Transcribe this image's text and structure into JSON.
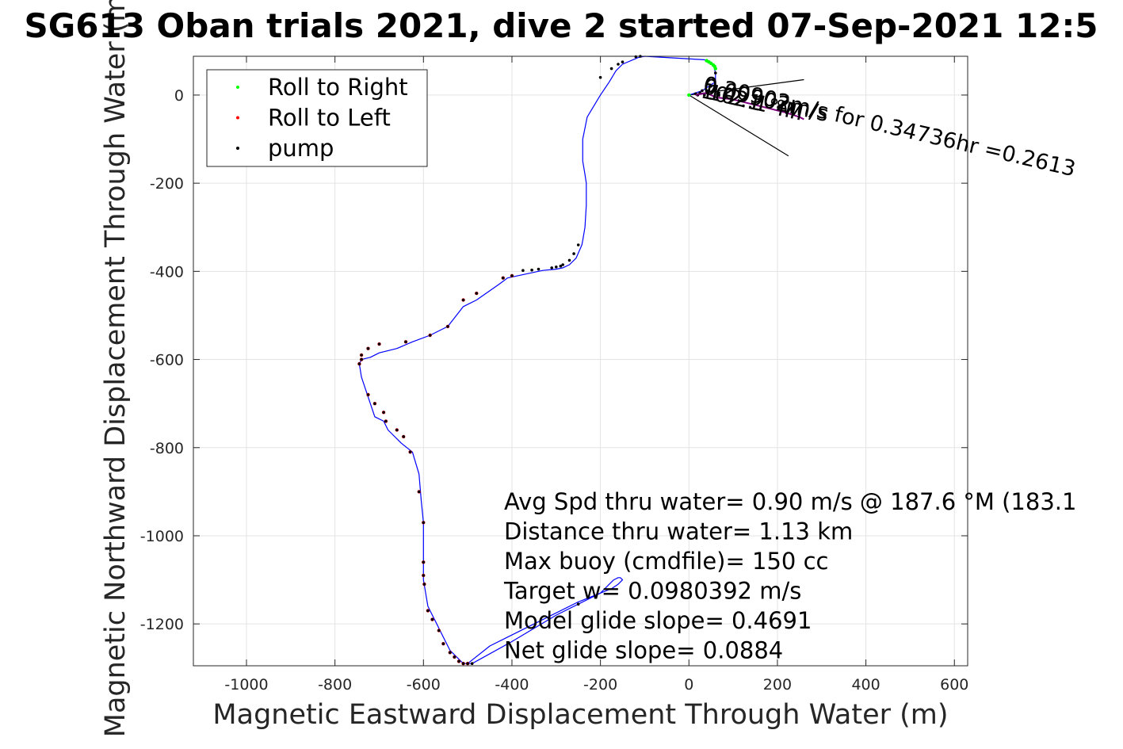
{
  "chart_data": {
    "type": "scatter",
    "title": "SG613 Oban trials 2021, dive 2 started 07-Sep-2021 12:5",
    "xlabel": "Magnetic Eastward Displacement Through Water (m)",
    "ylabel": "Magnetic Northward Displacement Through Water (m)",
    "xlim": [
      -1120,
      630
    ],
    "ylim": [
      -1295,
      88
    ],
    "xticks": [
      -1000,
      -800,
      -600,
      -400,
      -200,
      0,
      200,
      400,
      600
    ],
    "yticks": [
      0,
      -200,
      -400,
      -600,
      -800,
      -1000,
      -1200
    ],
    "grid": true,
    "legend": {
      "location": "top-left",
      "entries": [
        "Roll to Right",
        "Roll to Left",
        "pump"
      ]
    },
    "colors": {
      "track": "#0000ff",
      "roll_right": "#00ff00",
      "roll_left": "#ff0000",
      "pump": "#000000",
      "current_arrow": "#7f007f",
      "wedge": "#000000"
    },
    "series": [
      {
        "name": "track",
        "style": "line",
        "x": [
          0,
          30,
          60,
          60,
          55,
          45,
          35,
          -100,
          -115,
          -150,
          -165,
          -180,
          -200,
          -230,
          -240,
          -240,
          -235,
          -232,
          -232,
          -235,
          -240,
          -242,
          -255,
          -270,
          -285,
          -300,
          -330,
          -340,
          -410,
          -430,
          -480,
          -510,
          -545,
          -585,
          -625,
          -660,
          -700,
          -720,
          -740,
          -745,
          -740,
          -720,
          -710,
          -690,
          -680,
          -650,
          -625,
          -610,
          -605,
          -600,
          -600,
          -600,
          -600,
          -595,
          -590,
          -580,
          -570,
          -555,
          -540,
          -520,
          -510,
          -490,
          -400,
          -300,
          -200,
          -180,
          -170,
          -160,
          -155,
          -150,
          -160,
          -175,
          -200,
          -250,
          -350,
          -450,
          -500
        ],
        "y": [
          0,
          10,
          30,
          50,
          70,
          78,
          80,
          88,
          85,
          70,
          55,
          30,
          0,
          -50,
          -100,
          -150,
          -180,
          -200,
          -250,
          -300,
          -330,
          -340,
          -370,
          -385,
          -392,
          -395,
          -398,
          -400,
          -415,
          -430,
          -465,
          -480,
          -525,
          -545,
          -560,
          -575,
          -585,
          -595,
          -600,
          -610,
          -640,
          -700,
          -730,
          -740,
          -760,
          -790,
          -810,
          -860,
          -920,
          -970,
          -1000,
          -1050,
          -1100,
          -1130,
          -1160,
          -1180,
          -1200,
          -1230,
          -1260,
          -1280,
          -1290,
          -1290,
          -1240,
          -1180,
          -1130,
          -1110,
          -1100,
          -1095,
          -1095,
          -1100,
          -1110,
          -1120,
          -1130,
          -1150,
          -1200,
          -1250,
          -1290
        ]
      },
      {
        "name": "Roll to Right",
        "style": "markers",
        "x": [
          0,
          40,
          45,
          50,
          55,
          58,
          60
        ],
        "y": [
          0,
          78,
          75,
          72,
          68,
          65,
          60
        ]
      },
      {
        "name": "Roll to Left",
        "style": "markers",
        "x": [
          -400,
          -420,
          -480,
          -510,
          -545,
          -585,
          -640,
          -700,
          -725,
          -740,
          -745,
          -740,
          -725,
          -710,
          -690,
          -685,
          -660,
          -645,
          -630,
          -610,
          -600,
          -600,
          -600,
          -598,
          -590,
          -580,
          -565,
          -555,
          -540,
          -530,
          -520,
          -510,
          -500
        ],
        "y": [
          -410,
          -415,
          -450,
          -465,
          -525,
          -545,
          -560,
          -565,
          -575,
          -590,
          -610,
          -600,
          -680,
          -700,
          -720,
          -740,
          -760,
          -775,
          -810,
          -900,
          -970,
          -1060,
          -1090,
          -1110,
          -1170,
          -1190,
          -1215,
          -1245,
          -1265,
          -1275,
          -1285,
          -1290,
          -1290
        ]
      },
      {
        "name": "pump",
        "style": "markers",
        "x": [
          -110,
          -120,
          -150,
          -160,
          -175,
          -200,
          -250,
          -260,
          -270,
          -285,
          -290,
          -300,
          -310,
          -340,
          -355,
          -375,
          -400,
          -420,
          -480,
          -510,
          -545,
          -585,
          -640,
          -700,
          -725,
          -740,
          -745,
          -740,
          -725,
          -710,
          -690,
          -685,
          -660,
          -645,
          -630,
          -610,
          -600,
          -600,
          -600,
          -598,
          -590,
          -580,
          -565,
          -555,
          -540,
          -530,
          -520,
          -510,
          -500,
          -490,
          -250,
          60,
          55,
          50,
          45,
          40,
          35,
          30,
          25,
          20,
          15
        ],
        "y": [
          88,
          87,
          75,
          70,
          60,
          40,
          -340,
          -360,
          -375,
          -385,
          -388,
          -390,
          -392,
          -395,
          -397,
          -398,
          -410,
          -415,
          -450,
          -465,
          -525,
          -545,
          -560,
          -565,
          -575,
          -590,
          -610,
          -600,
          -680,
          -700,
          -720,
          -740,
          -760,
          -775,
          -810,
          -900,
          -970,
          -1060,
          -1090,
          -1110,
          -1170,
          -1190,
          -1215,
          -1245,
          -1265,
          -1275,
          -1285,
          -1290,
          -1290,
          -1290,
          -1155,
          50,
          35,
          20,
          10,
          5,
          0,
          10,
          5,
          0,
          3
        ]
      },
      {
        "name": "current",
        "style": "line",
        "x": [
          15,
          40,
          60,
          100,
          160,
          220,
          250,
          260
        ],
        "y": [
          0,
          5,
          -5,
          -10,
          -25,
          -40,
          -50,
          -55
        ]
      },
      {
        "name": "wedge-upper",
        "style": "line",
        "x": [
          0,
          260
        ],
        "y": [
          0,
          35
        ]
      },
      {
        "name": "wedge-lower",
        "style": "line",
        "x": [
          0,
          225
        ],
        "y": [
          0,
          -138
        ]
      }
    ],
    "annotations": [
      {
        "text": "0.20902m/s for 0.34736hr =0.2613",
        "x": 30,
        "y": 10,
        "rotation": 13
      },
      {
        "text": "102.1 °M",
        "x": 25,
        "y": -5,
        "rotation": 13
      },
      {
        "text": "102.1 °M",
        "x": 40,
        "y": -8,
        "rotation": 13
      },
      {
        "text": "0.09902m/s",
        "x": 30,
        "y": 5,
        "rotation": 13
      }
    ],
    "stats_text": [
      "Avg Spd thru water=  0.90 m/s @ 187.6 °M (183.1",
      "Distance thru water=  1.13 km",
      "Max buoy (cmdfile)= 150 cc",
      "Target w= 0.0980392 m/s",
      "Model glide slope= 0.4691",
      "Net glide slope= 0.0884"
    ]
  }
}
